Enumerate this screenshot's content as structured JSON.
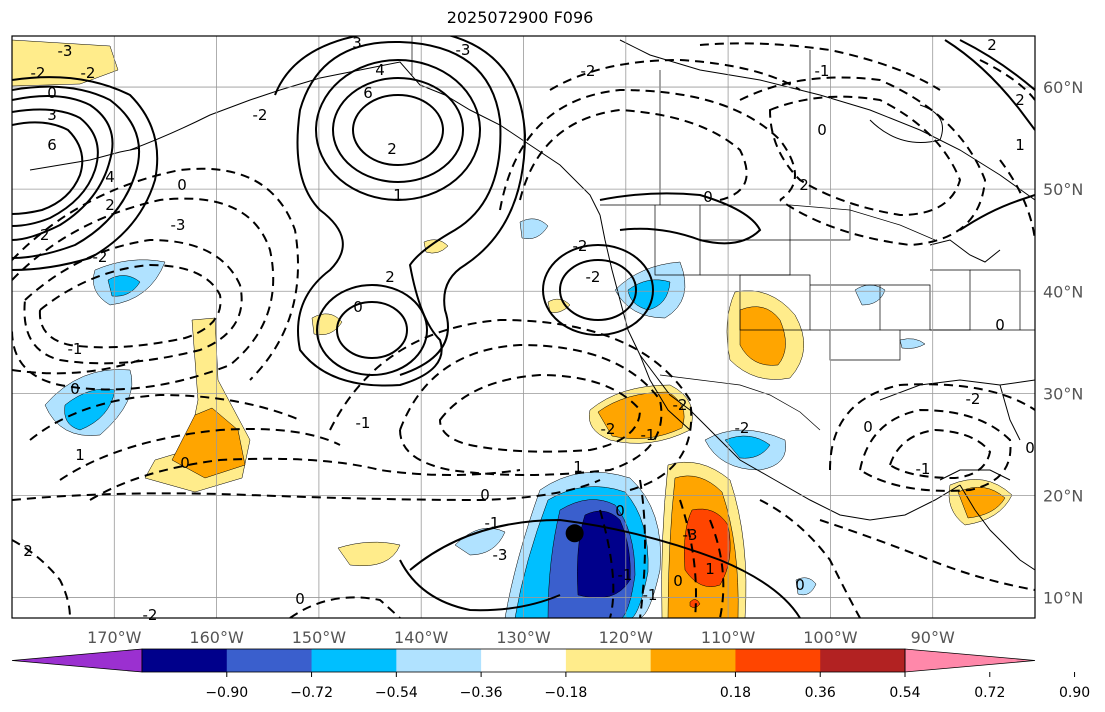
{
  "title": "2025072900 F096",
  "map": {
    "lon_range": [
      -180,
      -80
    ],
    "lat_range": [
      8,
      65
    ],
    "lon_ticks": [
      {
        "value": -170,
        "label": "170°W"
      },
      {
        "value": -160,
        "label": "160°W"
      },
      {
        "value": -150,
        "label": "150°W"
      },
      {
        "value": -140,
        "label": "140°W"
      },
      {
        "value": -130,
        "label": "130°W"
      },
      {
        "value": -120,
        "label": "120°W"
      },
      {
        "value": -110,
        "label": "110°W"
      },
      {
        "value": -100,
        "label": "100°W"
      },
      {
        "value": -90,
        "label": "90°W"
      }
    ],
    "lat_ticks": [
      {
        "value": 60,
        "label": "60°N"
      },
      {
        "value": 50,
        "label": "50°N"
      },
      {
        "value": 40,
        "label": "40°N"
      },
      {
        "value": 30,
        "label": "30°N"
      },
      {
        "value": 20,
        "label": "20°N"
      },
      {
        "value": 10,
        "label": "10°N"
      }
    ],
    "gridlines": true,
    "marker": {
      "lon": -125,
      "lat": 16.3
    }
  },
  "colorbar": {
    "colors": [
      "#9b30d0",
      "#00008b",
      "#3a5fcd",
      "#00bfff",
      "#b0e2ff",
      "#ffffff",
      "#ffec8b",
      "#ffa500",
      "#ff4500",
      "#b22222",
      "#ff88aa"
    ],
    "ticks": [
      {
        "value": -0.9,
        "label": "−0.90"
      },
      {
        "value": -0.72,
        "label": "−0.72"
      },
      {
        "value": -0.54,
        "label": "−0.54"
      },
      {
        "value": -0.36,
        "label": "−0.36"
      },
      {
        "value": -0.18,
        "label": "−0.18"
      },
      {
        "value": 0.18,
        "label": "0.18"
      },
      {
        "value": 0.36,
        "label": "0.36"
      },
      {
        "value": 0.54,
        "label": "0.54"
      },
      {
        "value": 0.72,
        "label": "0.72"
      },
      {
        "value": 0.9,
        "label": "0.90"
      }
    ]
  },
  "contour_labels": [
    "-3",
    "-2",
    "-2",
    "0",
    "3",
    "6",
    "4",
    "2",
    "-2",
    "-1",
    "0",
    "-2",
    "-3",
    "0",
    "1",
    "3",
    "4",
    "6",
    "2",
    "1",
    "2",
    "0",
    "-3",
    "-2",
    "-1",
    "0",
    "2",
    "0",
    "-2",
    "-2",
    "-1",
    "0",
    "-1",
    "-3",
    "0",
    "2",
    "0",
    "1",
    "-2",
    "-1",
    "0",
    "-2",
    "-2",
    "0",
    "1",
    "0",
    "-1",
    "-2",
    "1",
    "0",
    "2",
    "2",
    "0",
    "-1",
    "-1",
    "-3",
    "-2",
    "0",
    "-2"
  ]
}
